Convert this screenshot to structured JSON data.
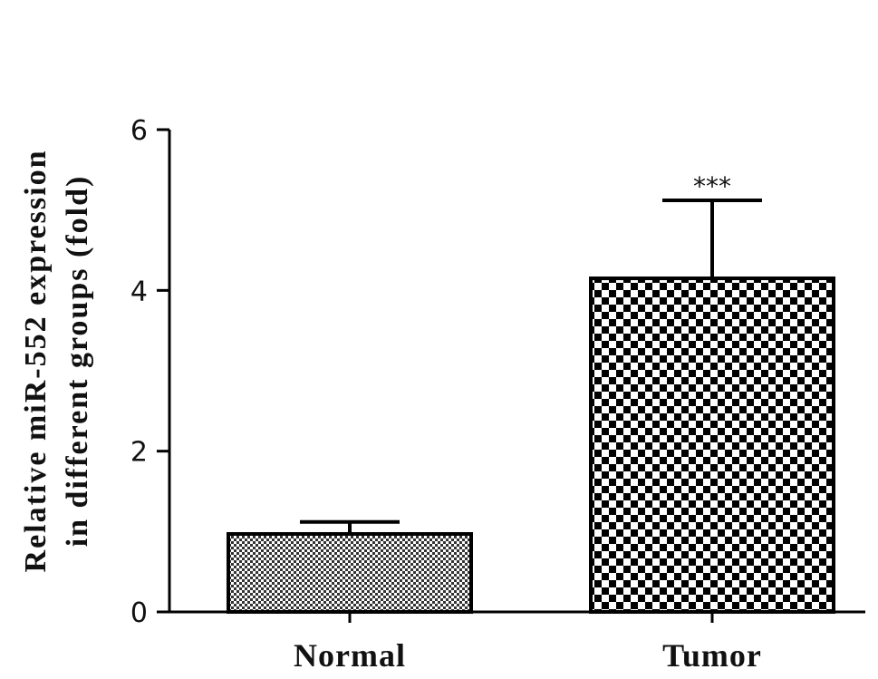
{
  "chart_data": {
    "type": "bar",
    "title": "",
    "categories": [
      "Normal",
      "Tumor"
    ],
    "values": [
      0.97,
      4.15
    ],
    "error_upper": [
      1.12,
      5.12
    ],
    "annotations": [
      "",
      "***"
    ],
    "patterns": [
      "fine-checker",
      "coarse-checker"
    ],
    "xlabel": "",
    "ylabel_lines": [
      "Relative miR-552 expression",
      "in different groups (fold)"
    ],
    "yticks": [
      0,
      2,
      4,
      6
    ],
    "ylim": [
      0,
      6
    ],
    "grid": false,
    "legend": "none",
    "colors": {
      "bar_edge": "#000000",
      "bar_fill": "#ffffff",
      "axis": "#000000"
    }
  }
}
